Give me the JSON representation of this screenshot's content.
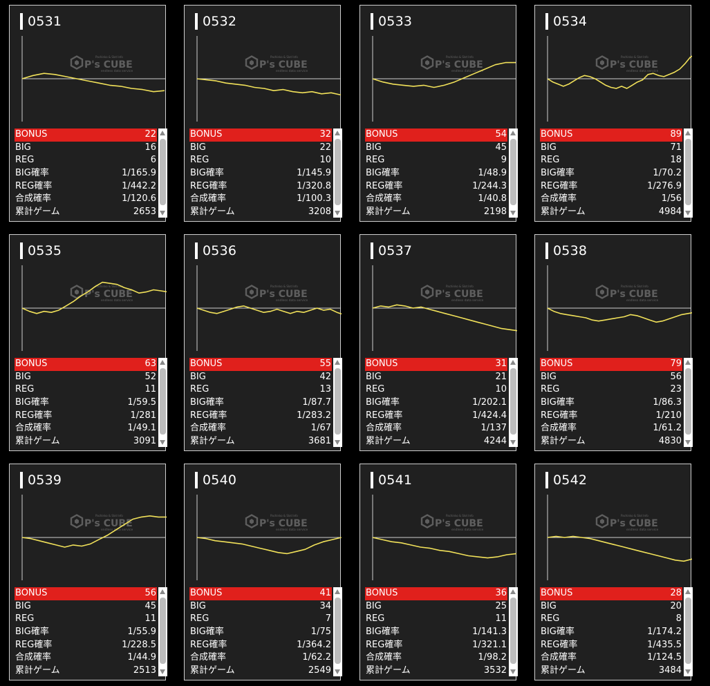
{
  "watermark": {
    "brand": "P's CUBE",
    "small_top": "Pachinko & Slot Info",
    "small_bottom": "endless data service"
  },
  "colors": {
    "line": "#f2e25a",
    "bonus_bg": "#e0201c",
    "card_bg": "#202020"
  },
  "labels": {
    "bonus": "BONUS",
    "big": "BIG",
    "reg": "REG",
    "big_rate": "BIG確率",
    "reg_rate": "REG確率",
    "total_rate": "合成確率",
    "games": "累計ゲーム"
  },
  "machines": [
    {
      "id": "0531",
      "bonus": "22",
      "big": "16",
      "reg": "6",
      "big_rate": "1/165.9",
      "reg_rate": "1/442.2",
      "total_rate": "1/120.6",
      "games": "2653"
    },
    {
      "id": "0532",
      "bonus": "32",
      "big": "22",
      "reg": "10",
      "big_rate": "1/145.9",
      "reg_rate": "1/320.8",
      "total_rate": "1/100.3",
      "games": "3208"
    },
    {
      "id": "0533",
      "bonus": "54",
      "big": "45",
      "reg": "9",
      "big_rate": "1/48.9",
      "reg_rate": "1/244.3",
      "total_rate": "1/40.8",
      "games": "2198"
    },
    {
      "id": "0534",
      "bonus": "89",
      "big": "71",
      "reg": "18",
      "big_rate": "1/70.2",
      "reg_rate": "1/276.9",
      "total_rate": "1/56",
      "games": "4984"
    },
    {
      "id": "0535",
      "bonus": "63",
      "big": "52",
      "reg": "11",
      "big_rate": "1/59.5",
      "reg_rate": "1/281",
      "total_rate": "1/49.1",
      "games": "3091"
    },
    {
      "id": "0536",
      "bonus": "55",
      "big": "42",
      "reg": "13",
      "big_rate": "1/87.7",
      "reg_rate": "1/283.2",
      "total_rate": "1/67",
      "games": "3681"
    },
    {
      "id": "0537",
      "bonus": "31",
      "big": "21",
      "reg": "10",
      "big_rate": "1/202.1",
      "reg_rate": "1/424.4",
      "total_rate": "1/137",
      "games": "4244"
    },
    {
      "id": "0538",
      "bonus": "79",
      "big": "56",
      "reg": "23",
      "big_rate": "1/86.3",
      "reg_rate": "1/210",
      "total_rate": "1/61.2",
      "games": "4830"
    },
    {
      "id": "0539",
      "bonus": "56",
      "big": "45",
      "reg": "11",
      "big_rate": "1/55.9",
      "reg_rate": "1/228.5",
      "total_rate": "1/44.9",
      "games": "2513"
    },
    {
      "id": "0540",
      "bonus": "41",
      "big": "34",
      "reg": "7",
      "big_rate": "1/75",
      "reg_rate": "1/364.2",
      "total_rate": "1/62.2",
      "games": "2549"
    },
    {
      "id": "0541",
      "bonus": "36",
      "big": "25",
      "reg": "11",
      "big_rate": "1/141.3",
      "reg_rate": "1/321.1",
      "total_rate": "1/98.2",
      "games": "3532"
    },
    {
      "id": "0542",
      "bonus": "28",
      "big": "20",
      "reg": "8",
      "big_rate": "1/174.2",
      "reg_rate": "1/435.5",
      "total_rate": "1/124.5",
      "games": "3484"
    }
  ],
  "chart_data": [
    {
      "type": "line",
      "series": [
        {
          "values": [
            0,
            6,
            10,
            8,
            4,
            0,
            -4,
            -8,
            -12,
            -14,
            -18,
            -20,
            -24,
            -22
          ]
        }
      ]
    },
    {
      "type": "line",
      "series": [
        {
          "values": [
            0,
            -2,
            -4,
            -8,
            -10,
            -12,
            -16,
            -18,
            -22,
            -20,
            -24,
            -26,
            -24,
            -28,
            -26,
            -30
          ]
        }
      ]
    },
    {
      "type": "line",
      "series": [
        {
          "values": [
            0,
            -6,
            -10,
            -12,
            -14,
            -12,
            -16,
            -12,
            -6,
            2,
            10,
            18,
            26,
            30,
            30
          ]
        }
      ]
    },
    {
      "type": "line",
      "series": [
        {
          "values": [
            0,
            -6,
            -10,
            -14,
            -10,
            -4,
            2,
            6,
            4,
            0,
            -6,
            -12,
            -16,
            -18,
            -14,
            -18,
            -12,
            -6,
            -2,
            8,
            10,
            6,
            4,
            8,
            12,
            18,
            28,
            40,
            46
          ]
        }
      ]
    },
    {
      "type": "line",
      "series": [
        {
          "values": [
            0,
            -6,
            -10,
            -6,
            -8,
            -4,
            4,
            12,
            22,
            30,
            40,
            48,
            46,
            44,
            38,
            34,
            28,
            30,
            34,
            32,
            30
          ]
        }
      ]
    },
    {
      "type": "line",
      "series": [
        {
          "values": [
            0,
            -4,
            -8,
            -10,
            -6,
            -2,
            2,
            4,
            0,
            -4,
            -8,
            -6,
            -2,
            -6,
            -10,
            -6,
            -8,
            -4,
            0,
            -4,
            -2,
            -8,
            -12
          ]
        }
      ]
    },
    {
      "type": "line",
      "series": [
        {
          "values": [
            0,
            4,
            2,
            6,
            4,
            0,
            2,
            -2,
            -6,
            -10,
            -14,
            -18,
            -22,
            -26,
            -30,
            -34,
            -38,
            -40,
            -42
          ]
        }
      ]
    },
    {
      "type": "line",
      "series": [
        {
          "values": [
            0,
            -6,
            -10,
            -12,
            -14,
            -16,
            -18,
            -22,
            -24,
            -22,
            -20,
            -18,
            -16,
            -12,
            -14,
            -18,
            -22,
            -26,
            -24,
            -20,
            -16,
            -12,
            -10,
            -8
          ]
        }
      ]
    },
    {
      "type": "line",
      "series": [
        {
          "values": [
            0,
            -2,
            -6,
            -10,
            -14,
            -18,
            -14,
            -16,
            -12,
            -4,
            4,
            14,
            24,
            34,
            38,
            40,
            38,
            38
          ]
        }
      ]
    },
    {
      "type": "line",
      "series": [
        {
          "values": [
            0,
            -2,
            -6,
            -8,
            -10,
            -12,
            -16,
            -20,
            -24,
            -28,
            -30,
            -26,
            -22,
            -14,
            -8,
            -4,
            0
          ]
        }
      ]
    },
    {
      "type": "line",
      "series": [
        {
          "values": [
            0,
            -4,
            -8,
            -10,
            -14,
            -18,
            -20,
            -24,
            -26,
            -30,
            -34,
            -36,
            -38,
            -36,
            -32,
            -30
          ]
        }
      ]
    },
    {
      "type": "line",
      "series": [
        {
          "values": [
            0,
            2,
            0,
            2,
            0,
            -2,
            -6,
            -10,
            -14,
            -18,
            -22,
            -26,
            -30,
            -34,
            -38,
            -42,
            -44,
            -40
          ]
        }
      ]
    }
  ]
}
